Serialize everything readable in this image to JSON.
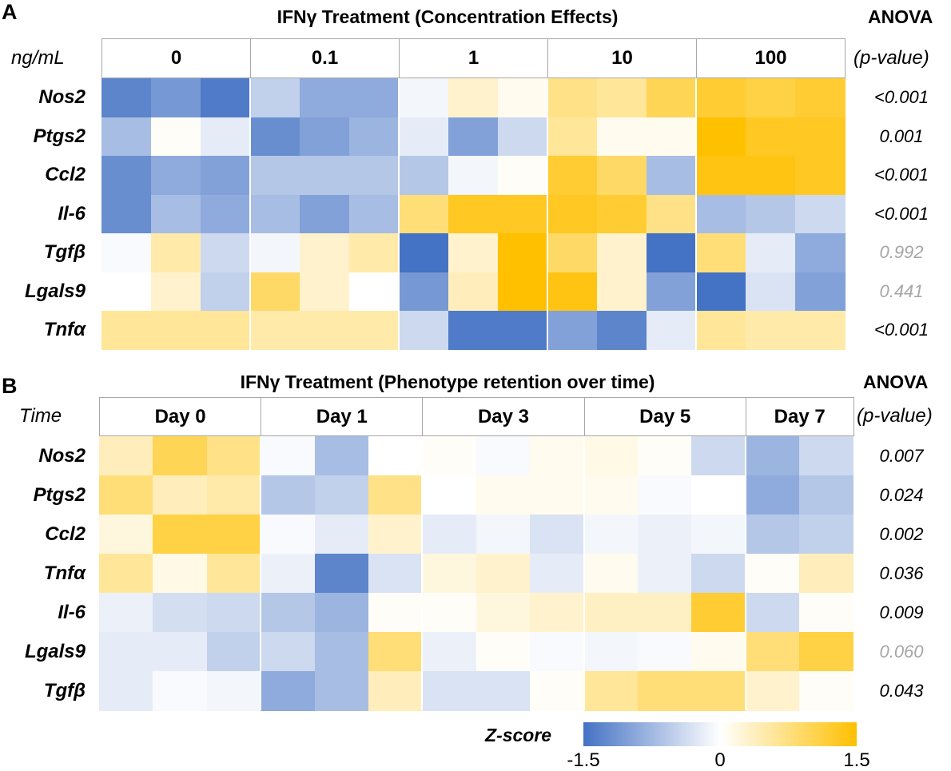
{
  "panelA": {
    "letter": "A",
    "title": "IFNγ Treatment (Concentration Effects)",
    "anova_label": "ANOVA",
    "axis_label": "ng/mL",
    "pvalue_header": "(p-value)",
    "groups": [
      "0",
      "0.1",
      "1",
      "10",
      "100"
    ],
    "genes": [
      "Nos2",
      "Ptgs2",
      "Ccl2",
      "Il-6",
      "Tgfβ",
      "Lgals9",
      "Tnfα"
    ],
    "pvalues": [
      {
        "text": "<0.001",
        "significant": true
      },
      {
        "text": "0.001",
        "significant": true
      },
      {
        "text": "<0.001",
        "significant": true
      },
      {
        "text": "<0.001",
        "significant": true
      },
      {
        "text": "0.992",
        "significant": false
      },
      {
        "text": "0.441",
        "significant": false
      },
      {
        "text": "<0.001",
        "significant": true
      }
    ]
  },
  "panelB": {
    "letter": "B",
    "title": "IFNγ Treatment (Phenotype retention over time)",
    "anova_label": "ANOVA",
    "axis_label": "Time",
    "pvalue_header": "(p-value)",
    "groups": [
      "Day 0",
      "Day 1",
      "Day 3",
      "Day 5",
      "Day 7"
    ],
    "genes": [
      "Nos2",
      "Ptgs2",
      "Ccl2",
      "Tnfα",
      "Il-6",
      "Lgals9",
      "Tgfβ"
    ],
    "pvalues": [
      {
        "text": "0.007",
        "significant": true
      },
      {
        "text": "0.024",
        "significant": true
      },
      {
        "text": "0.002",
        "significant": true
      },
      {
        "text": "0.036",
        "significant": true
      },
      {
        "text": "0.009",
        "significant": true
      },
      {
        "text": "0.060",
        "significant": false
      },
      {
        "text": "0.043",
        "significant": true
      }
    ]
  },
  "colorbar": {
    "label": "Z-score",
    "ticks": [
      "-1.5",
      "0",
      "1.5"
    ],
    "min": -1.5,
    "max": 1.5,
    "low_color": "#4472c4",
    "mid_color": "#ffffff",
    "high_color": "#ffc000"
  },
  "colors": {
    "nonsignificant_text": "#a6a6a6",
    "significant_text": "#000000"
  },
  "chart_data": [
    {
      "type": "heatmap",
      "title": "IFNγ Treatment (Concentration Effects)",
      "xlabel": "ng/mL",
      "categories": [
        "0",
        "0",
        "0",
        "0.1",
        "0.1",
        "0.1",
        "1",
        "1",
        "1",
        "10",
        "10",
        "10",
        "100",
        "100",
        "100"
      ],
      "rows": [
        "Nos2",
        "Ptgs2",
        "Ccl2",
        "Il-6",
        "Tgfβ",
        "Lgals9",
        "Tnfα"
      ],
      "zlim": [
        -1.5,
        1.5
      ],
      "values": [
        [
          -1.3,
          -1.1,
          -1.4,
          -0.5,
          -0.9,
          -0.9,
          -0.1,
          0.3,
          0.1,
          0.7,
          0.6,
          1.0,
          1.2,
          1.1,
          1.2
        ],
        [
          -0.7,
          0.05,
          -0.2,
          -1.2,
          -1.0,
          -0.8,
          -0.2,
          -1.0,
          -0.4,
          0.6,
          0.1,
          0.1,
          1.5,
          1.3,
          1.3
        ],
        [
          -1.2,
          -0.9,
          -1.0,
          -0.6,
          -0.6,
          -0.6,
          -0.6,
          -0.1,
          0.05,
          1.2,
          0.9,
          -0.7,
          1.4,
          1.4,
          1.3
        ],
        [
          -1.2,
          -0.7,
          -0.9,
          -0.7,
          -1.0,
          -0.7,
          0.8,
          1.3,
          1.3,
          1.3,
          1.2,
          0.7,
          -0.7,
          -0.6,
          -0.4
        ],
        [
          -0.05,
          0.5,
          -0.4,
          -0.1,
          0.3,
          0.5,
          -1.5,
          0.3,
          1.5,
          0.9,
          0.3,
          -1.5,
          0.8,
          -0.2,
          -0.9
        ],
        [
          0.0,
          0.3,
          -0.5,
          0.9,
          0.3,
          0.0,
          -1.1,
          0.4,
          1.5,
          1.4,
          0.3,
          -1.0,
          -1.5,
          -0.3,
          -1.0
        ],
        [
          0.6,
          0.6,
          0.6,
          0.5,
          0.5,
          0.5,
          -0.4,
          -1.4,
          -1.4,
          -1.0,
          -1.3,
          -0.2,
          0.6,
          0.5,
          0.5
        ]
      ]
    },
    {
      "type": "heatmap",
      "title": "IFNγ Treatment (Phenotype retention over time)",
      "xlabel": "Time",
      "categories": [
        "Day 0",
        "Day 0",
        "Day 0",
        "Day 1",
        "Day 1",
        "Day 1",
        "Day 3",
        "Day 3",
        "Day 3",
        "Day 5",
        "Day 5",
        "Day 5",
        "Day 7",
        "Day 7"
      ],
      "rows": [
        "Nos2",
        "Ptgs2",
        "Ccl2",
        "Tnfα",
        "Il-6",
        "Lgals9",
        "Tgfβ"
      ],
      "zlim": [
        -1.5,
        1.5
      ],
      "values": [
        [
          0.4,
          1.0,
          0.7,
          -0.05,
          -0.7,
          0.0,
          0.05,
          -0.05,
          0.1,
          0.15,
          0.05,
          -0.4,
          -0.8,
          -0.4
        ],
        [
          0.8,
          0.4,
          0.5,
          -0.6,
          -0.5,
          0.7,
          0.0,
          0.1,
          0.1,
          0.1,
          -0.05,
          0.0,
          -0.9,
          -0.6
        ],
        [
          0.2,
          1.1,
          1.1,
          -0.05,
          -0.2,
          0.3,
          -0.2,
          -0.1,
          -0.3,
          -0.1,
          -0.15,
          -0.1,
          -0.6,
          -0.5
        ],
        [
          0.6,
          0.15,
          0.6,
          -0.15,
          -1.3,
          -0.3,
          0.2,
          0.3,
          -0.2,
          0.1,
          -0.15,
          -0.4,
          0.05,
          0.4
        ],
        [
          -0.15,
          -0.35,
          -0.4,
          -0.6,
          -0.8,
          0.05,
          0.05,
          0.2,
          0.3,
          0.35,
          0.35,
          1.2,
          -0.4,
          0.05
        ],
        [
          -0.2,
          -0.2,
          -0.5,
          -0.4,
          -0.7,
          0.8,
          -0.15,
          0.05,
          -0.05,
          -0.1,
          -0.05,
          0.1,
          0.8,
          1.1
        ],
        [
          -0.2,
          -0.05,
          -0.1,
          -0.9,
          -0.7,
          0.4,
          -0.3,
          -0.3,
          0.05,
          0.6,
          0.8,
          0.8,
          0.3,
          0.05
        ]
      ]
    }
  ]
}
